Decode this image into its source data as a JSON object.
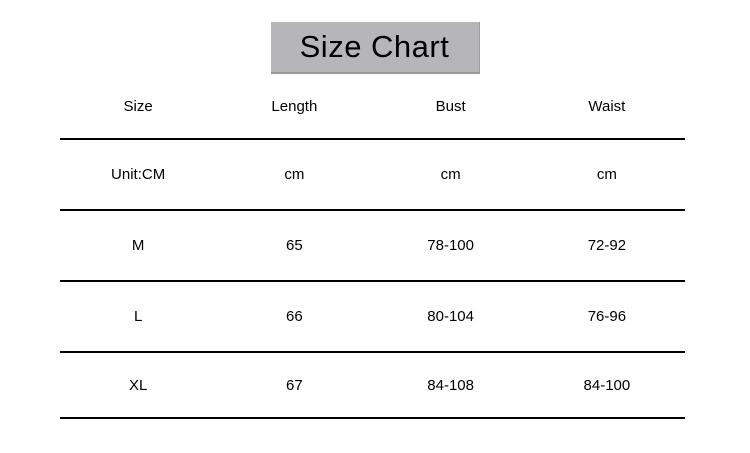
{
  "chart_data": {
    "type": "table",
    "title": "Size Chart",
    "columns": [
      "Size",
      "Length",
      "Bust",
      "Waist"
    ],
    "rows": [
      [
        "Unit:CM",
        "cm",
        "cm",
        "cm"
      ],
      [
        "M",
        "65",
        "78-100",
        "72-92"
      ],
      [
        "L",
        "66",
        "80-104",
        "76-96"
      ],
      [
        "XL",
        "67",
        "84-108",
        "84-100"
      ]
    ],
    "unit": "cm"
  },
  "colors": {
    "title_background": "#b6b6ba",
    "rule_line": "#000000",
    "text": "#000000",
    "page_background": "#ffffff"
  }
}
